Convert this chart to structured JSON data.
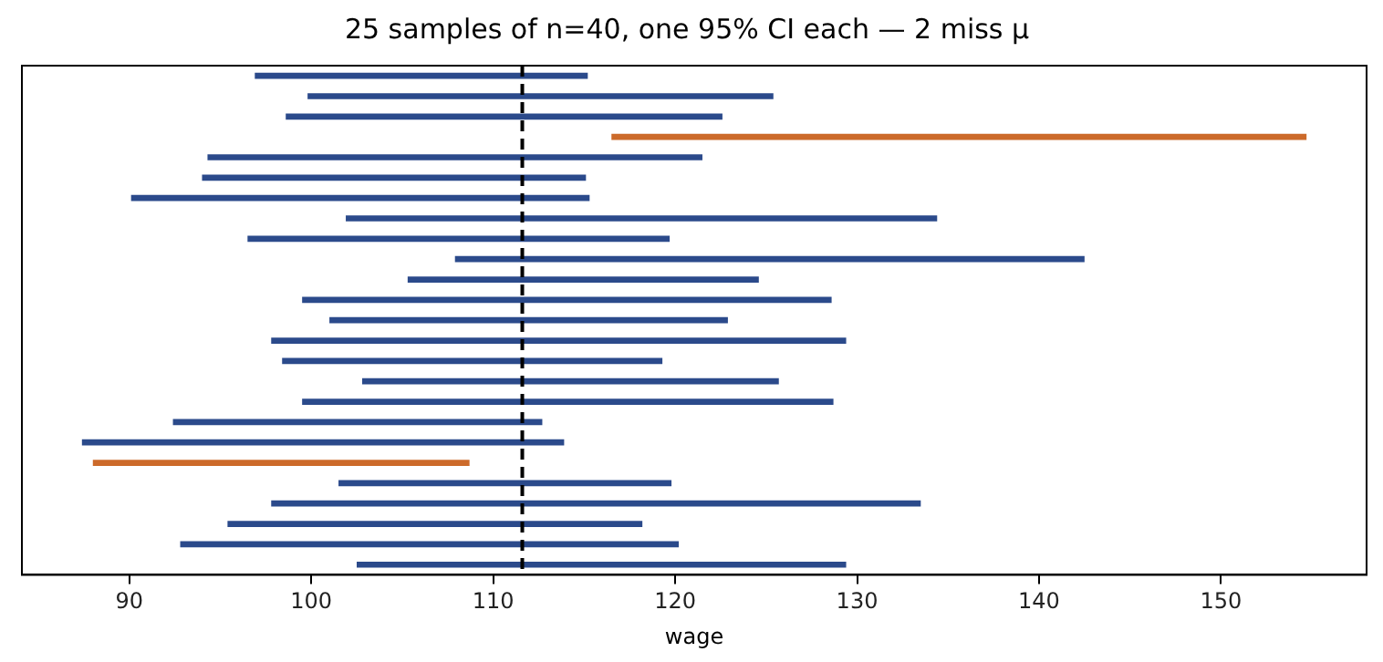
{
  "chart_data": {
    "type": "bar",
    "orientation": "horizontal",
    "title": "25 samples of n=40, one 95% CI each — 2 miss μ",
    "xlabel": "wage",
    "categories": [
      null,
      null,
      null,
      null,
      null,
      null,
      null,
      null,
      null,
      null,
      null,
      null,
      null,
      null,
      null,
      null,
      null,
      null,
      null,
      null,
      null,
      null,
      null,
      null,
      null
    ],
    "base": [
      96.9,
      99.8,
      98.6,
      116.5,
      94.3,
      94.0,
      90.1,
      101.9,
      96.5,
      107.9,
      105.3,
      99.5,
      101.0,
      97.8,
      98.4,
      102.8,
      99.5,
      92.4,
      87.4,
      88.0,
      101.5,
      97.8,
      95.4,
      92.8,
      102.5
    ],
    "values": [
      18.3,
      25.6,
      24.0,
      38.2,
      27.2,
      21.1,
      25.2,
      32.5,
      23.2,
      34.6,
      19.3,
      29.1,
      21.9,
      31.6,
      20.9,
      22.9,
      29.2,
      20.3,
      26.5,
      20.7,
      18.3,
      35.7,
      22.8,
      27.4,
      26.9
    ],
    "colors": [
      "#2b4a8b",
      "#2b4a8b",
      "#2b4a8b",
      "#cc6a2a",
      "#2b4a8b",
      "#2b4a8b",
      "#2b4a8b",
      "#2b4a8b",
      "#2b4a8b",
      "#2b4a8b",
      "#2b4a8b",
      "#2b4a8b",
      "#2b4a8b",
      "#2b4a8b",
      "#2b4a8b",
      "#2b4a8b",
      "#2b4a8b",
      "#2b4a8b",
      "#2b4a8b",
      "#cc6a2a",
      "#2b4a8b",
      "#2b4a8b",
      "#2b4a8b",
      "#2b4a8b",
      "#2b4a8b"
    ],
    "xlim": [
      84.1,
      158.0
    ],
    "xticks": [
      90,
      100,
      110,
      120,
      130,
      140,
      150
    ],
    "tick_labels": "x",
    "legend": false,
    "ref_lines": [
      {
        "axis": "x",
        "value": 111.6,
        "color": "#000000",
        "line_style": "dashed"
      }
    ]
  }
}
